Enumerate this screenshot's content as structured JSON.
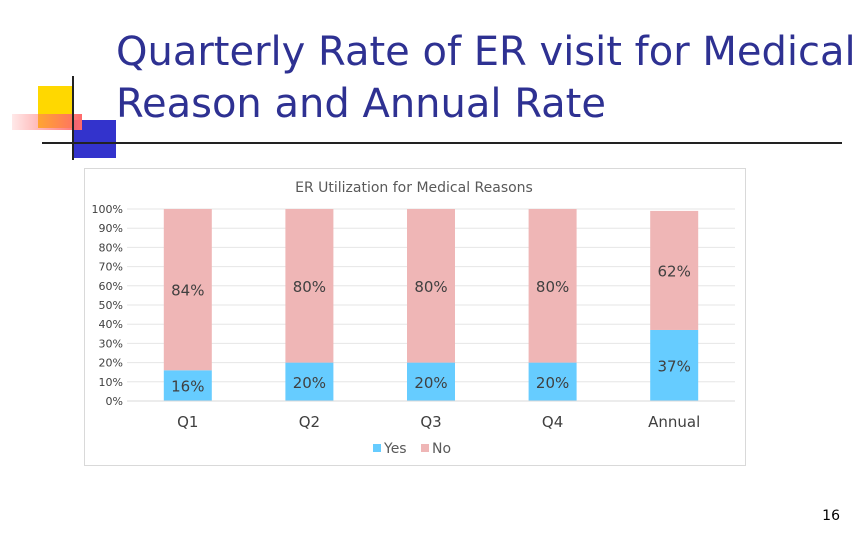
{
  "slide": {
    "title": "Quarterly Rate of ER visit for Medical\nReason and Annual Rate",
    "page_number": "16"
  },
  "colors": {
    "title": "#2e3192",
    "yes": "#66ccff",
    "no": "#efb6b6",
    "deco_yellow": "#ffd800",
    "deco_red": "#ff6a6a",
    "deco_blue": "#3333cc"
  },
  "chart_data": {
    "type": "bar",
    "stacked": true,
    "title": "ER Utilization for Medical Reasons",
    "categories": [
      "Q1",
      "Q2",
      "Q3",
      "Q4",
      "Annual"
    ],
    "series": [
      {
        "name": "Yes",
        "values": [
          16,
          20,
          20,
          20,
          37
        ],
        "labels": [
          "16%",
          "20%",
          "20%",
          "20%",
          "37%"
        ]
      },
      {
        "name": "No",
        "values": [
          84,
          80,
          80,
          80,
          62
        ],
        "labels": [
          "84%",
          "80%",
          "80%",
          "80%",
          "62%"
        ]
      }
    ],
    "yticks": [
      "0%",
      "10%",
      "20%",
      "30%",
      "40%",
      "50%",
      "60%",
      "70%",
      "80%",
      "90%",
      "100%"
    ],
    "ylim": [
      0,
      100
    ],
    "grid": true,
    "legend": "bottom"
  }
}
